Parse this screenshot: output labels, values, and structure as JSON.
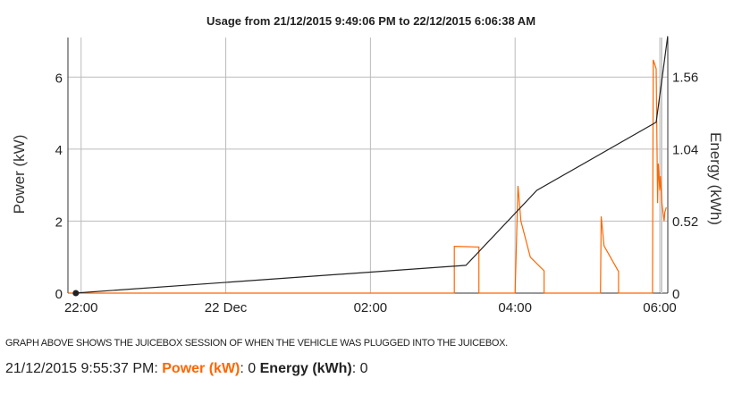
{
  "chart_data": {
    "type": "line",
    "title": "Usage from 21/12/2015 9:49:06 PM to 22/12/2015 6:06:38 AM",
    "x_unit": "hours since 21 Dec 00:00",
    "xlim": [
      21.818,
      30.111
    ],
    "x_ticks": [
      {
        "value": 22,
        "label": "22:00"
      },
      {
        "value": 24,
        "label": "22 Dec"
      },
      {
        "value": 26,
        "label": "02:00"
      },
      {
        "value": 28,
        "label": "04:00"
      },
      {
        "value": 30,
        "label": "06:00"
      }
    ],
    "y_left": {
      "label": "Power (kW)",
      "lim": [
        0,
        7.1
      ],
      "ticks": [
        {
          "value": 0,
          "label": "0"
        },
        {
          "value": 2,
          "label": "2"
        },
        {
          "value": 4,
          "label": "4"
        },
        {
          "value": 6,
          "label": "6"
        }
      ]
    },
    "y_right": {
      "label": "Energy (kWh)",
      "lim": [
        0,
        1.84
      ],
      "ticks": [
        {
          "value": 0,
          "label": "0"
        },
        {
          "value": 0.52,
          "label": "0.52"
        },
        {
          "value": 1.04,
          "label": "1.04"
        },
        {
          "value": 1.56,
          "label": "1.56"
        }
      ]
    },
    "grid": true,
    "series": [
      {
        "name": "Power (kW)",
        "axis": "left",
        "color": "#ff6600",
        "x": [
          21.82,
          27.16,
          27.16,
          27.5,
          27.5,
          28.0,
          28.04,
          28.08,
          28.21,
          28.4,
          28.4,
          29.18,
          29.19,
          29.23,
          29.43,
          29.43,
          29.9,
          29.91,
          29.95,
          29.97,
          29.98,
          30.0,
          30.01,
          30.03,
          30.06,
          30.07,
          30.09
        ],
        "y": [
          0,
          0,
          1.3,
          1.28,
          0,
          0,
          2.98,
          2.0,
          1.0,
          0.62,
          0,
          0,
          2.13,
          1.31,
          0.6,
          0,
          0,
          6.48,
          6.23,
          2.5,
          3.6,
          2.85,
          3.25,
          2.5,
          2.0,
          2.25,
          2.38
        ]
      },
      {
        "name": "Energy (kWh)",
        "axis": "right",
        "color": "#222222",
        "x": [
          21.91,
          27.32,
          28.3,
          29.95,
          30.11
        ],
        "y": [
          0,
          0.2,
          0.74,
          1.23,
          1.85
        ]
      }
    ],
    "marker": {
      "x": 21.927,
      "y": 0
    }
  },
  "note": "GRAPH ABOVE SHOWS THE JUICEBOX SESSION OF WHEN THE VEHICLE WAS PLUGGED INTO THE JUICEBOX.",
  "readout": {
    "time": "21/12/2015 9:55:37 PM:",
    "power_label": "Power (kW)",
    "power_value": ": 0",
    "energy_label": "Energy (kWh)",
    "energy_value": ": 0"
  }
}
